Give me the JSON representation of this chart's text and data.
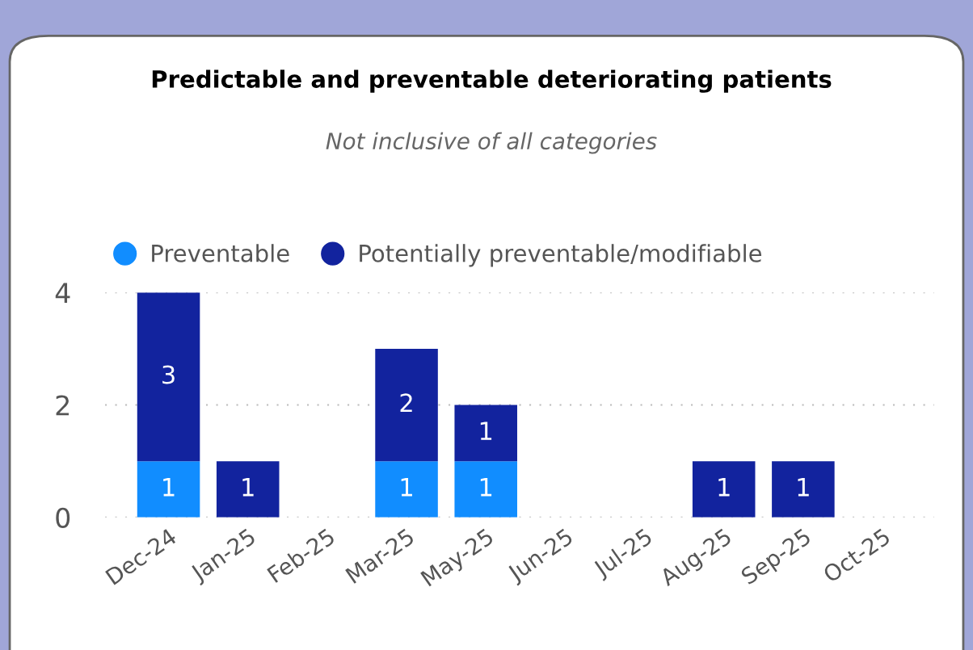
{
  "chart_data": {
    "type": "bar",
    "title": "Predictable and preventable deteriorating patients",
    "subtitle": "Not inclusive of all categories",
    "categories": [
      "Dec-24",
      "Jan-25",
      "Feb-25",
      "Mar-25",
      "May-25",
      "Jun-25",
      "Jul-25",
      "Aug-25",
      "Sep-25",
      "Oct-25"
    ],
    "series": [
      {
        "name": "Preventable",
        "color": "#118dff",
        "values": [
          1,
          null,
          null,
          1,
          1,
          null,
          null,
          null,
          null,
          null
        ]
      },
      {
        "name": "Potentially preventable/modifiable",
        "color": "#12239e",
        "values": [
          3,
          1,
          null,
          2,
          1,
          null,
          null,
          1,
          1,
          null
        ]
      }
    ],
    "stacked": true,
    "ylim": [
      0,
      4
    ],
    "yticks": [
      0,
      2,
      4
    ],
    "grid": "y",
    "legend": "top left",
    "data_labels": true
  }
}
